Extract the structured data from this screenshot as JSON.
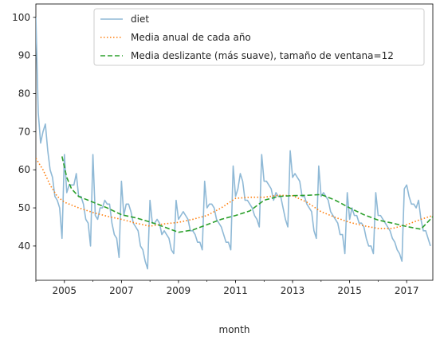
{
  "chart_data": {
    "type": "line",
    "title": "",
    "xlabel": "month",
    "ylabel": "",
    "xlim": [
      "2004-01",
      "2017-12"
    ],
    "ylim": [
      31,
      103.5
    ],
    "grid": false,
    "legend_position": "top-right",
    "x_ticks": [
      "2005",
      "2007",
      "2009",
      "2011",
      "2013",
      "2015",
      "2017"
    ],
    "y_ticks": [
      40,
      50,
      60,
      70,
      80,
      90,
      100
    ],
    "series": [
      {
        "name": "diet",
        "style": "solid",
        "color": "#8fb9d6",
        "x_start": "2004-01",
        "values": [
          100,
          75,
          67,
          70,
          72,
          65,
          60,
          58,
          53,
          52,
          50,
          42,
          64,
          54,
          56,
          56,
          56,
          59,
          53,
          53,
          51,
          47,
          46,
          40,
          64,
          48,
          47,
          50,
          50,
          52,
          51,
          51,
          46,
          43,
          42,
          37,
          57,
          48,
          51,
          51,
          49,
          46,
          45,
          44,
          40,
          39,
          36,
          34,
          52,
          46,
          46,
          47,
          46,
          43,
          44,
          43,
          42,
          39,
          38,
          52,
          47,
          48,
          49,
          48,
          47,
          44,
          44,
          43,
          41,
          41,
          39,
          57,
          50,
          51,
          51,
          50,
          47,
          46,
          45,
          43,
          41,
          41,
          39,
          61,
          53,
          55,
          59,
          57,
          52,
          52,
          51,
          50,
          48,
          47,
          45,
          64,
          57,
          57,
          56,
          55,
          52,
          54,
          53,
          53,
          50,
          47,
          45,
          65,
          58,
          59,
          58,
          57,
          53,
          53,
          51,
          50,
          49,
          44,
          42,
          61,
          53,
          54,
          53,
          52,
          49,
          48,
          47,
          46,
          43,
          43,
          38,
          54,
          47,
          50,
          48,
          48,
          46,
          46,
          45,
          42,
          40,
          40,
          38,
          54,
          48,
          48,
          47,
          46,
          45,
          44,
          42,
          41,
          39,
          38,
          36,
          55,
          56,
          53,
          51,
          51,
          50,
          52,
          47,
          44,
          44,
          42,
          40
        ]
      },
      {
        "name": "Media anual de cada año",
        "style": "dotted",
        "color": "#ff7f0e",
        "x": [
          "2004-01",
          "2004-04",
          "2004-07",
          "2004-10",
          "2005-01",
          "2005-07",
          "2006-01",
          "2006-07",
          "2007-01",
          "2007-07",
          "2008-01",
          "2008-07",
          "2009-01",
          "2009-07",
          "2010-01",
          "2010-07",
          "2011-01",
          "2011-07",
          "2012-01",
          "2012-07",
          "2013-01",
          "2013-07",
          "2014-01",
          "2014-07",
          "2015-01",
          "2015-07",
          "2016-01",
          "2016-07",
          "2017-01",
          "2017-07",
          "2017-12"
        ],
        "values": [
          63,
          60,
          56,
          53,
          51.5,
          50,
          48.8,
          47.8,
          47,
          46,
          45.2,
          45.8,
          46.2,
          47,
          48,
          50,
          52.5,
          52.8,
          52.8,
          53.3,
          53.2,
          51.5,
          49,
          47.5,
          46.2,
          45.3,
          44.6,
          44.6,
          45.6,
          47,
          48
        ]
      },
      {
        "name": "Media deslizante (más suave), tamaño de ventana=12",
        "style": "dashed",
        "color": "#2ca02c",
        "x": [
          "2004-12",
          "2005-02",
          "2005-04",
          "2005-07",
          "2006-01",
          "2006-07",
          "2007-01",
          "2007-07",
          "2008-01",
          "2008-07",
          "2009-01",
          "2009-07",
          "2010-01",
          "2010-07",
          "2011-01",
          "2011-07",
          "2012-01",
          "2012-07",
          "2013-01",
          "2013-07",
          "2014-01",
          "2014-07",
          "2015-01",
          "2015-07",
          "2016-01",
          "2016-07",
          "2017-01",
          "2017-07",
          "2017-12"
        ],
        "values": [
          63.5,
          58,
          55,
          53,
          51.5,
          50,
          48.2,
          47.4,
          46.3,
          45,
          43.6,
          44.2,
          45.6,
          47,
          48,
          49.2,
          52,
          53,
          53.2,
          53.3,
          53.5,
          52,
          50,
          48.2,
          46.8,
          46,
          45.1,
          44.4,
          47.7
        ]
      }
    ]
  }
}
